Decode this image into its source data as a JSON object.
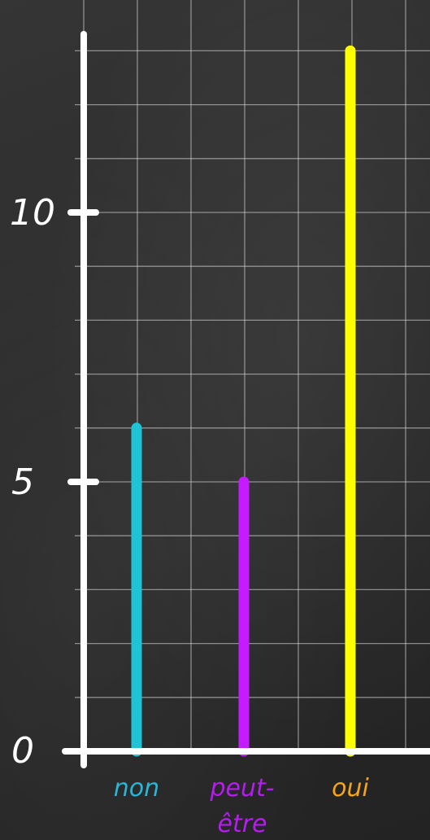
{
  "chart_data": {
    "type": "bar",
    "categories": [
      "non",
      "peut-être",
      "oui"
    ],
    "category_label_lines": [
      [
        "non"
      ],
      [
        "peut-",
        "être"
      ],
      [
        "oui"
      ]
    ],
    "values": [
      6,
      5,
      13
    ],
    "colors": [
      "#1ec3d6",
      "#c41cff",
      "#ffff00"
    ],
    "label_colors": [
      "#2bb5d6",
      "#b41cf0",
      "#f6a51a"
    ],
    "ylim": [
      0,
      13.5
    ],
    "ytick_values": [
      0,
      5,
      10
    ],
    "ytick_labels": [
      "0",
      "5",
      "10"
    ],
    "grid": true,
    "title": "",
    "xlabel": "",
    "ylabel": ""
  }
}
